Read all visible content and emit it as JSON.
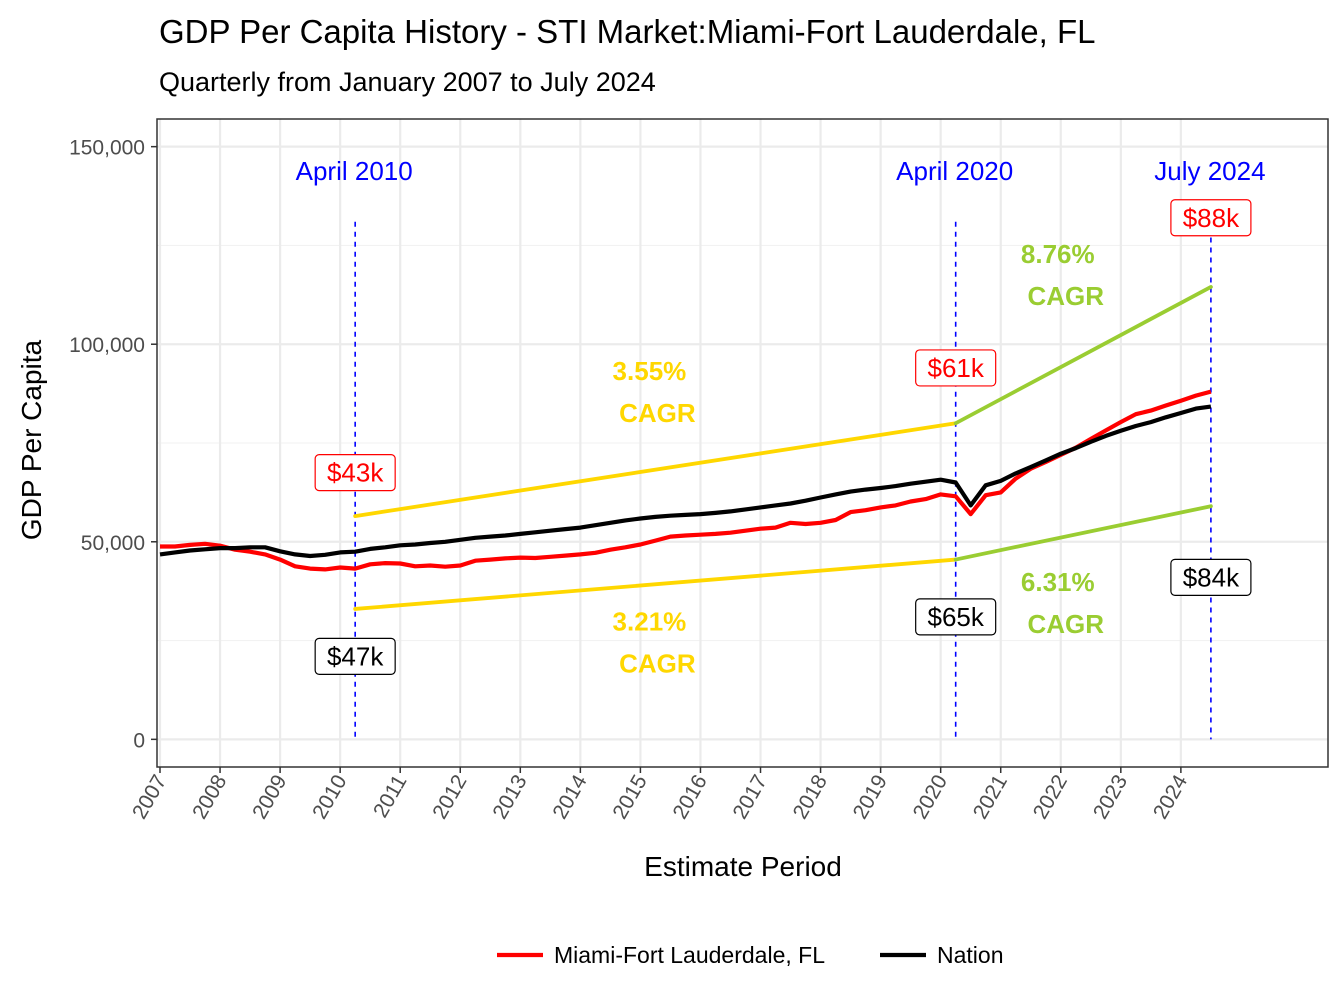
{
  "chart_data": {
    "type": "line",
    "title": "GDP Per Capita History - STI Market:Miami-Fort Lauderdale, FL",
    "subtitle": "Quarterly from January 2007 to July 2024",
    "xlabel": "Estimate Period",
    "ylabel": "GDP Per Capita",
    "ylim": [
      -7000,
      157000
    ],
    "xlim": [
      2006.95,
      2026.45
    ],
    "y_ticks": [
      0,
      50000,
      100000,
      150000
    ],
    "y_tick_labels": [
      "0",
      "50,000",
      "100,000",
      "150,000"
    ],
    "x_ticks": [
      2007,
      2008,
      2009,
      2010,
      2011,
      2012,
      2013,
      2014,
      2015,
      2016,
      2017,
      2018,
      2019,
      2020,
      2021,
      2022,
      2023,
      2024
    ],
    "x_tick_labels": [
      "2007",
      "2008",
      "2009",
      "2010",
      "2011",
      "2012",
      "2013",
      "2014",
      "2015",
      "2016",
      "2017",
      "2018",
      "2019",
      "2020",
      "2021",
      "2022",
      "2023",
      "2024"
    ],
    "series": [
      {
        "name": "Miami-Fort Lauderdale, FL",
        "color": "#ff0000",
        "points": [
          [
            2007.0,
            48800
          ],
          [
            2007.25,
            48800
          ],
          [
            2007.5,
            49200
          ],
          [
            2007.75,
            49500
          ],
          [
            2008.0,
            49000
          ],
          [
            2008.25,
            48000
          ],
          [
            2008.5,
            47500
          ],
          [
            2008.75,
            46800
          ],
          [
            2009.0,
            45500
          ],
          [
            2009.25,
            43800
          ],
          [
            2009.5,
            43200
          ],
          [
            2009.75,
            43000
          ],
          [
            2010.0,
            43500
          ],
          [
            2010.25,
            43200
          ],
          [
            2010.5,
            44300
          ],
          [
            2010.75,
            44600
          ],
          [
            2011.0,
            44500
          ],
          [
            2011.25,
            43800
          ],
          [
            2011.5,
            44000
          ],
          [
            2011.75,
            43700
          ],
          [
            2012.0,
            44000
          ],
          [
            2012.25,
            45200
          ],
          [
            2012.5,
            45500
          ],
          [
            2012.75,
            45800
          ],
          [
            2013.0,
            46000
          ],
          [
            2013.25,
            45900
          ],
          [
            2013.5,
            46200
          ],
          [
            2013.75,
            46500
          ],
          [
            2014.0,
            46800
          ],
          [
            2014.25,
            47200
          ],
          [
            2014.5,
            48000
          ],
          [
            2014.75,
            48600
          ],
          [
            2015.0,
            49300
          ],
          [
            2015.25,
            50300
          ],
          [
            2015.5,
            51300
          ],
          [
            2015.75,
            51600
          ],
          [
            2016.0,
            51800
          ],
          [
            2016.25,
            52000
          ],
          [
            2016.5,
            52300
          ],
          [
            2016.75,
            52800
          ],
          [
            2017.0,
            53300
          ],
          [
            2017.25,
            53600
          ],
          [
            2017.5,
            54800
          ],
          [
            2017.75,
            54500
          ],
          [
            2018.0,
            54800
          ],
          [
            2018.25,
            55500
          ],
          [
            2018.5,
            57500
          ],
          [
            2018.75,
            58000
          ],
          [
            2019.0,
            58700
          ],
          [
            2019.25,
            59200
          ],
          [
            2019.5,
            60200
          ],
          [
            2019.75,
            60800
          ],
          [
            2020.0,
            62000
          ],
          [
            2020.25,
            61500
          ],
          [
            2020.5,
            57000
          ],
          [
            2020.75,
            61800
          ],
          [
            2021.0,
            62500
          ],
          [
            2021.25,
            66000
          ],
          [
            2021.5,
            68500
          ],
          [
            2021.75,
            70200
          ],
          [
            2022.0,
            72000
          ],
          [
            2022.25,
            73800
          ],
          [
            2022.5,
            76000
          ],
          [
            2022.75,
            78200
          ],
          [
            2023.0,
            80300
          ],
          [
            2023.25,
            82300
          ],
          [
            2023.5,
            83200
          ],
          [
            2023.75,
            84500
          ],
          [
            2024.0,
            85700
          ],
          [
            2024.25,
            87000
          ],
          [
            2024.5,
            88000
          ]
        ]
      },
      {
        "name": "Nation",
        "color": "#000000",
        "points": [
          [
            2007.0,
            46800
          ],
          [
            2007.25,
            47300
          ],
          [
            2007.5,
            47800
          ],
          [
            2007.75,
            48100
          ],
          [
            2008.0,
            48400
          ],
          [
            2008.25,
            48400
          ],
          [
            2008.5,
            48600
          ],
          [
            2008.75,
            48600
          ],
          [
            2009.0,
            47600
          ],
          [
            2009.25,
            46800
          ],
          [
            2009.5,
            46400
          ],
          [
            2009.75,
            46700
          ],
          [
            2010.0,
            47300
          ],
          [
            2010.25,
            47500
          ],
          [
            2010.5,
            48200
          ],
          [
            2010.75,
            48600
          ],
          [
            2011.0,
            49100
          ],
          [
            2011.25,
            49300
          ],
          [
            2011.5,
            49700
          ],
          [
            2011.75,
            50000
          ],
          [
            2012.0,
            50500
          ],
          [
            2012.25,
            51000
          ],
          [
            2012.5,
            51300
          ],
          [
            2012.75,
            51600
          ],
          [
            2013.0,
            52000
          ],
          [
            2013.25,
            52400
          ],
          [
            2013.5,
            52800
          ],
          [
            2013.75,
            53200
          ],
          [
            2014.0,
            53600
          ],
          [
            2014.25,
            54200
          ],
          [
            2014.5,
            54800
          ],
          [
            2014.75,
            55400
          ],
          [
            2015.0,
            55900
          ],
          [
            2015.25,
            56300
          ],
          [
            2015.5,
            56600
          ],
          [
            2015.75,
            56800
          ],
          [
            2016.0,
            57000
          ],
          [
            2016.25,
            57300
          ],
          [
            2016.5,
            57700
          ],
          [
            2016.75,
            58200
          ],
          [
            2017.0,
            58700
          ],
          [
            2017.25,
            59200
          ],
          [
            2017.5,
            59700
          ],
          [
            2017.75,
            60400
          ],
          [
            2018.0,
            61200
          ],
          [
            2018.25,
            62000
          ],
          [
            2018.5,
            62700
          ],
          [
            2018.75,
            63200
          ],
          [
            2019.0,
            63600
          ],
          [
            2019.25,
            64100
          ],
          [
            2019.5,
            64700
          ],
          [
            2019.75,
            65200
          ],
          [
            2020.0,
            65700
          ],
          [
            2020.25,
            65000
          ],
          [
            2020.5,
            59200
          ],
          [
            2020.75,
            64300
          ],
          [
            2021.0,
            65400
          ],
          [
            2021.25,
            67300
          ],
          [
            2021.5,
            68900
          ],
          [
            2021.75,
            70600
          ],
          [
            2022.0,
            72300
          ],
          [
            2022.25,
            73700
          ],
          [
            2022.5,
            75300
          ],
          [
            2022.75,
            76800
          ],
          [
            2023.0,
            78100
          ],
          [
            2023.25,
            79300
          ],
          [
            2023.5,
            80300
          ],
          [
            2023.75,
            81500
          ],
          [
            2024.0,
            82600
          ],
          [
            2024.25,
            83700
          ],
          [
            2024.5,
            84200
          ]
        ]
      }
    ],
    "trend_lines": [
      {
        "from": [
          2010.25,
          56500
        ],
        "to": [
          2020.25,
          80000
        ],
        "color": "#ffd700"
      },
      {
        "from": [
          2020.25,
          80000
        ],
        "to": [
          2024.5,
          114500
        ],
        "color": "#9acd32"
      },
      {
        "from": [
          2010.25,
          33000
        ],
        "to": [
          2020.25,
          45500
        ],
        "color": "#ffd700"
      },
      {
        "from": [
          2020.25,
          45500
        ],
        "to": [
          2024.5,
          59000
        ],
        "color": "#9acd32"
      }
    ],
    "events": [
      {
        "x": 2010.25,
        "label": "April 2010",
        "y_top": 131000
      },
      {
        "x": 2020.25,
        "label": "April 2020",
        "y_top": 131000
      },
      {
        "x": 2024.5,
        "label": "July 2024",
        "y_top": 127000
      }
    ],
    "cagr_labels": [
      {
        "x": 2015.15,
        "y": 91000,
        "pct": "3.55%",
        "word": "CAGR",
        "color": "#ffd700"
      },
      {
        "x": 2015.15,
        "y": 27500,
        "pct": "3.21%",
        "word": "CAGR",
        "color": "#ffd700"
      },
      {
        "x": 2021.95,
        "y": 120500,
        "pct": "8.76%",
        "word": "CAGR",
        "color": "#9acd32"
      },
      {
        "x": 2021.95,
        "y": 37500,
        "pct": "6.31%",
        "word": "CAGR",
        "color": "#9acd32"
      }
    ],
    "value_labels": [
      {
        "x": 2010.25,
        "y": 67500,
        "text": "$43k",
        "color": "#ff0000"
      },
      {
        "x": 2010.25,
        "y": 21000,
        "text": "$47k",
        "color": "#000000"
      },
      {
        "x": 2020.25,
        "y": 94000,
        "text": "$61k",
        "color": "#ff0000"
      },
      {
        "x": 2020.25,
        "y": 31000,
        "text": "$65k",
        "color": "#000000"
      },
      {
        "x": 2024.5,
        "y": 132000,
        "text": "$88k",
        "color": "#ff0000"
      },
      {
        "x": 2024.5,
        "y": 41000,
        "text": "$84k",
        "color": "#000000"
      }
    ],
    "legend": {
      "position": "bottom",
      "items": [
        {
          "label": "Miami-Fort Lauderdale, FL",
          "color": "#ff0000"
        },
        {
          "label": "Nation",
          "color": "#000000"
        }
      ]
    }
  }
}
